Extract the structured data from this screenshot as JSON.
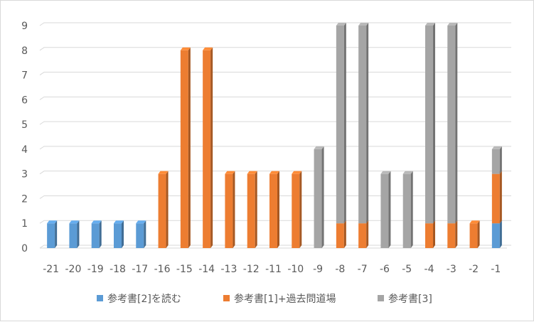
{
  "chart_data": {
    "type": "bar",
    "stacked": true,
    "style": "3d-column",
    "categories": [
      "-21",
      "-20",
      "-19",
      "-18",
      "-17",
      "-16",
      "-15",
      "-14",
      "-13",
      "-12",
      "-11",
      "-10",
      "-9",
      "-8",
      "-7",
      "-6",
      "-5",
      "-4",
      "-3",
      "-2",
      "-1"
    ],
    "series": [
      {
        "name": "参考書[2]を読む",
        "color": "#5b9bd5",
        "values": [
          1,
          1,
          1,
          1,
          1,
          0,
          0,
          0,
          0,
          0,
          0,
          0,
          0,
          0,
          0,
          0,
          0,
          0,
          0,
          0,
          1
        ]
      },
      {
        "name": "参考書[1]+過去問道場",
        "color": "#ed7d31",
        "values": [
          0,
          0,
          0,
          0,
          0,
          3,
          8,
          8,
          3,
          3,
          3,
          3,
          0,
          1,
          1,
          0,
          0,
          1,
          1,
          1,
          2
        ]
      },
      {
        "name": "参考書[3]",
        "color": "#a5a5a5",
        "values": [
          0,
          0,
          0,
          0,
          0,
          0,
          0,
          0,
          0,
          0,
          0,
          0,
          4,
          8,
          8,
          3,
          3,
          8,
          8,
          0,
          1
        ]
      }
    ],
    "yticks": [
      "0",
      "1",
      "2",
      "3",
      "4",
      "5",
      "6",
      "7",
      "8",
      "9"
    ],
    "ylim": [
      0,
      9
    ],
    "grid": true,
    "legend_position": "bottom"
  }
}
